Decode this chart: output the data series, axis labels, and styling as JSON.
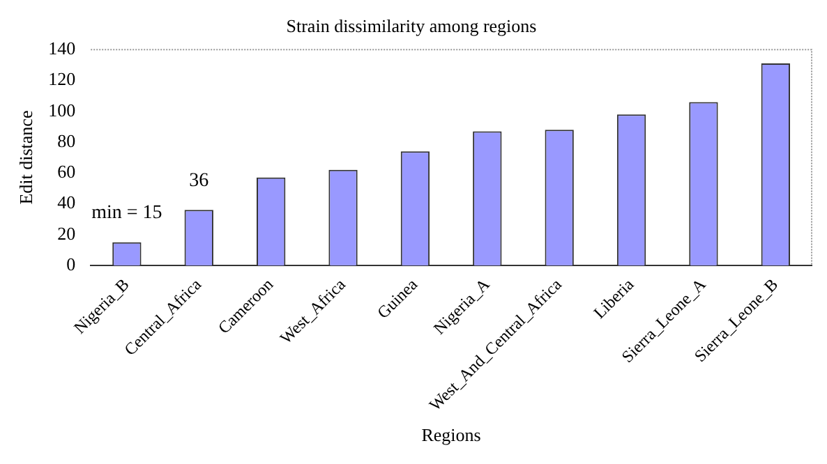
{
  "chart_data": {
    "type": "bar",
    "title": "Strain dissimilarity among regions",
    "xlabel": "Regions",
    "ylabel": "Edit distance",
    "categories": [
      "Nigeria_B",
      "Central_Africa",
      "Cameroon",
      "West_Africa",
      "Guinea",
      "Nigeria_A",
      "West_And_Central_Africa",
      "Liberia",
      "Sierra_Leone_A",
      "Sierra_Leone_B"
    ],
    "values": [
      15,
      36,
      57,
      62,
      74,
      87,
      88,
      98,
      106,
      131
    ],
    "color": "#9999ff",
    "ylim": [
      0,
      140
    ],
    "yticks": [
      0,
      20,
      40,
      60,
      80,
      100,
      120,
      140
    ],
    "grid": false,
    "legend": false,
    "annotations": [
      {
        "text": "min = 15",
        "x": "Nigeria_B",
        "y": 15
      },
      {
        "text": "36",
        "x": "Central_Africa",
        "y": 36
      }
    ]
  }
}
